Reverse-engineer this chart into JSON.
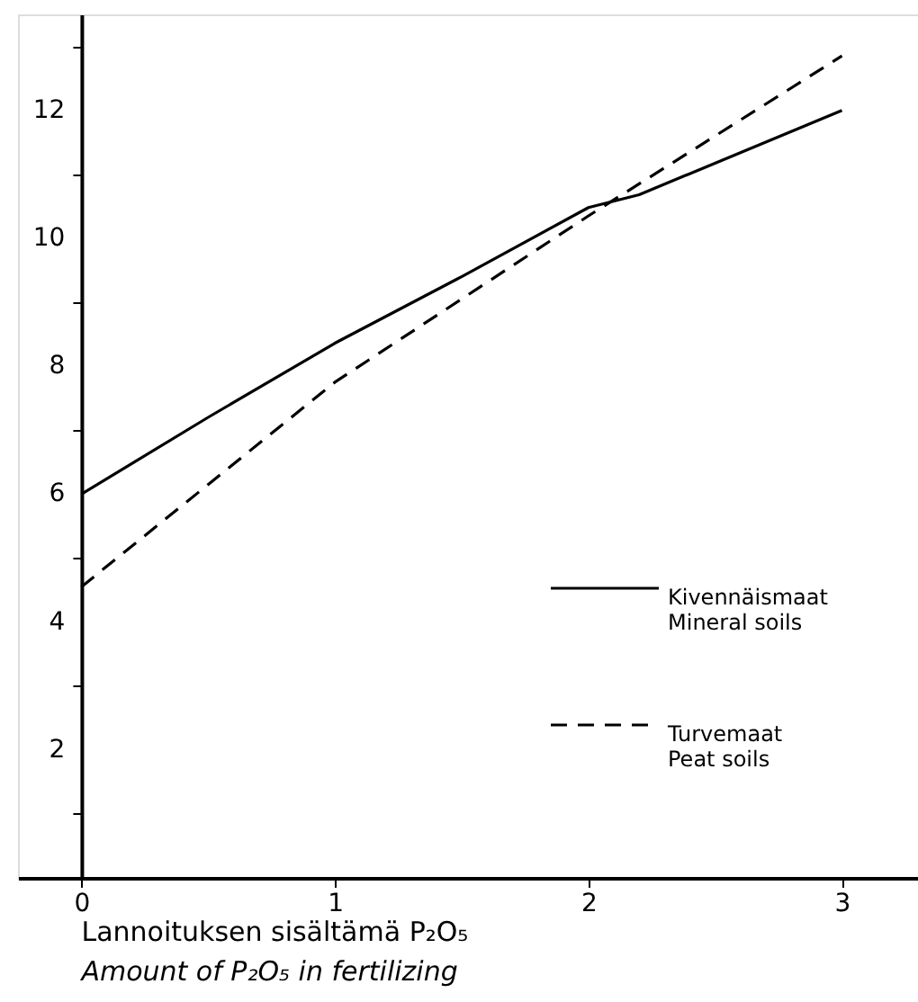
{
  "chart_data": {
    "type": "line",
    "x": [
      0,
      0.5,
      1,
      1.5,
      2,
      2.2,
      3
    ],
    "series": [
      {
        "name": "Kivennäismaat\nMineral soils",
        "color": "#000000",
        "line_style": "solid",
        "values": [
          6.0,
          7.2,
          8.36,
          9.4,
          10.48,
          10.68,
          12.0
        ]
      },
      {
        "name": "Turvemaat\nPeat soils",
        "color": "#000000",
        "line_style": "dashed",
        "values": [
          4.55,
          6.15,
          7.75,
          9.05,
          10.35,
          10.85,
          12.85
        ]
      }
    ],
    "xlabel": "Lannoituksen sisältämä P₂O₅\nAmount of P₂O₅ in fertilizing",
    "xlim": [
      -0.25,
      3.3
    ],
    "xticks": [
      0,
      1,
      2,
      3
    ],
    "ylim": [
      0,
      13.5
    ],
    "yticks": [
      {
        "value": 1,
        "label": null
      },
      2,
      {
        "value": 3,
        "label": null
      },
      4,
      {
        "value": 5,
        "label": null
      },
      6,
      {
        "value": 7,
        "label": null
      },
      8,
      {
        "value": 9,
        "label": null
      },
      10,
      {
        "value": 11,
        "label": null
      },
      12,
      {
        "value": 13,
        "label": null
      }
    ],
    "grid": false,
    "legend": "right",
    "marker": "none"
  }
}
